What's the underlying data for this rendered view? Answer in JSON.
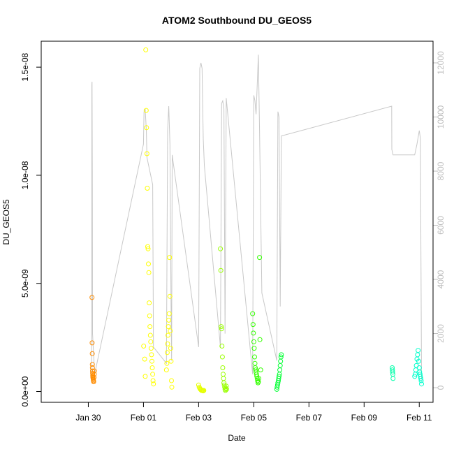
{
  "chart_data": {
    "type": "scatter",
    "title": "ATOM2 Southbound DU_GEOS5",
    "xlabel": "Date",
    "ylabel": "DU_GEOS5",
    "x_ticks": [
      "Jan 30",
      "Feb 01",
      "Feb 03",
      "Feb 05",
      "Feb 07",
      "Feb 09",
      "Feb 11"
    ],
    "xlim": [
      "2017-01-28T07:00",
      "2017-02-11T12:00"
    ],
    "ylim": [
      -5e-10,
      1.62e-08
    ],
    "y_ticks": [
      "0.0e+00",
      "5.0e-09",
      "1.0e-08",
      "1.5e-08"
    ],
    "y_tick_values": [
      0,
      5e-09,
      1e-08,
      1.5e-08
    ],
    "y2_ticks": [
      "0",
      "2000",
      "4000",
      "6000",
      "8000",
      "10000",
      "12000"
    ],
    "y2_tick_values": [
      0,
      2000,
      4000,
      6000,
      8000,
      10000,
      12000
    ],
    "y2lim": [
      -540,
      12800
    ],
    "y2_color": "#bdbdbd",
    "grid": false,
    "legend": "none",
    "series": [
      {
        "color": "#ff8c00",
        "x": [
          "2017-01-30T03:10",
          "2017-01-30T03:20",
          "2017-01-30T03:25",
          "2017-01-30T03:30",
          "2017-01-30T03:35",
          "2017-01-30T03:40",
          "2017-01-30T03:45",
          "2017-01-30T03:50",
          "2017-01-30T03:55",
          "2017-01-30T04:00",
          "2017-01-30T04:10",
          "2017-01-30T04:20",
          "2017-01-30T04:30",
          "2017-01-30T04:40",
          "2017-01-30T05:00",
          "2017-01-30T05:10",
          "2017-01-30T05:20"
        ],
        "y": [
          4.35e-09,
          2.25e-09,
          1.75e-09,
          1.25e-09,
          1.1e-09,
          9.5e-10,
          8.5e-10,
          7.5e-10,
          7e-10,
          6.5e-10,
          6e-10,
          5.5e-10,
          5e-10,
          4.5e-10,
          6.5e-10,
          8e-10,
          9.5e-10
        ]
      },
      {
        "color": "#ffff00",
        "x": [
          "2017-02-01T00:10",
          "2017-02-01T01:00",
          "2017-02-01T01:30",
          "2017-02-01T02:00",
          "2017-02-01T02:20",
          "2017-02-01T02:40",
          "2017-02-01T03:00",
          "2017-02-01T03:20",
          "2017-02-01T03:40",
          "2017-02-01T04:00",
          "2017-02-01T04:20",
          "2017-02-01T04:40",
          "2017-02-01T05:00",
          "2017-02-01T05:20",
          "2017-02-01T05:40",
          "2017-02-01T06:00",
          "2017-02-01T06:20",
          "2017-02-01T06:40",
          "2017-02-01T07:00",
          "2017-02-01T07:20",
          "2017-02-01T07:40",
          "2017-02-01T08:00",
          "2017-02-01T08:20",
          "2017-02-01T08:40"
        ],
        "y": [
          2.1e-09,
          1.5e-09,
          7e-10,
          1.58e-08,
          1.3e-08,
          1.22e-08,
          1.1e-08,
          9.4e-09,
          6.7e-09,
          6.6e-09,
          5.9e-09,
          5.5e-09,
          4.1e-09,
          3.5e-09,
          3e-09,
          2.6e-09,
          2.3e-09,
          2e-09,
          1.7e-09,
          1.4e-09,
          1.1e-09,
          8e-10,
          5e-10,
          3.5e-10
        ]
      },
      {
        "color": "#ffff00",
        "x": [
          "2017-02-01T20:00",
          "2017-02-01T20:20",
          "2017-02-01T20:40",
          "2017-02-01T21:00",
          "2017-02-01T21:20",
          "2017-02-01T21:40",
          "2017-02-01T22:00",
          "2017-02-01T22:20",
          "2017-02-01T22:40",
          "2017-02-01T23:00",
          "2017-02-01T23:20",
          "2017-02-01T23:40",
          "2017-02-02T00:00",
          "2017-02-02T00:20",
          "2017-02-02T00:40"
        ],
        "y": [
          1e-09,
          1.3e-09,
          1.8e-09,
          2.2e-09,
          2.6e-09,
          3e-09,
          3.3e-09,
          3.6e-09,
          6.2e-09,
          4.4e-09,
          2.8e-09,
          2e-09,
          1.4e-09,
          5e-10,
          2e-10
        ]
      },
      {
        "color": "#e6ff00",
        "x": [
          "2017-02-03T00:00",
          "2017-02-03T00:30",
          "2017-02-03T01:00",
          "2017-02-03T01:30",
          "2017-02-03T02:00",
          "2017-02-03T02:30",
          "2017-02-03T03:00",
          "2017-02-03T03:30",
          "2017-02-03T04:00",
          "2017-02-03T04:30"
        ],
        "y": [
          3e-10,
          2e-10,
          1.5e-10,
          1e-10,
          8e-11,
          5e-11,
          6e-11,
          4e-11,
          3e-11,
          5e-11
        ]
      },
      {
        "color": "#99ff00",
        "x": [
          "2017-02-03T19:00",
          "2017-02-03T19:20",
          "2017-02-03T19:40",
          "2017-02-03T20:00",
          "2017-02-03T20:20",
          "2017-02-03T20:40",
          "2017-02-03T21:00",
          "2017-02-03T21:20",
          "2017-02-03T21:40",
          "2017-02-03T22:00",
          "2017-02-03T22:20",
          "2017-02-03T22:40",
          "2017-02-03T23:00",
          "2017-02-03T23:20",
          "2017-02-03T23:40",
          "2017-02-04T00:00",
          "2017-02-04T00:20"
        ],
        "y": [
          6.6e-09,
          5.6e-09,
          3e-09,
          2.9e-09,
          2.1e-09,
          1.6e-09,
          1.1e-09,
          8e-10,
          6e-10,
          4e-10,
          3e-10,
          2e-10,
          1e-10,
          5e-11,
          1.5e-10,
          2.5e-10,
          1e-10
        ]
      },
      {
        "color": "#33ff00",
        "x": [
          "2017-02-04T23:00",
          "2017-02-04T23:20",
          "2017-02-04T23:40",
          "2017-02-05T00:00",
          "2017-02-05T00:20",
          "2017-02-05T00:40",
          "2017-02-05T01:00",
          "2017-02-05T01:20",
          "2017-02-05T01:40",
          "2017-02-05T02:00",
          "2017-02-05T02:20",
          "2017-02-05T02:40",
          "2017-02-05T03:00",
          "2017-02-05T03:20",
          "2017-02-05T03:40",
          "2017-02-05T04:00",
          "2017-02-05T04:20",
          "2017-02-05T05:00",
          "2017-02-05T05:20",
          "2017-02-05T06:00"
        ],
        "y": [
          3.6e-09,
          3.1e-09,
          2.7e-09,
          2.3e-09,
          2e-09,
          1.6e-09,
          1.3e-09,
          1.1e-09,
          1e-09,
          9e-10,
          8e-10,
          7e-10,
          6e-10,
          5e-10,
          4e-10,
          4.5e-10,
          6e-10,
          6.2e-09,
          2.4e-09,
          1e-09
        ]
      },
      {
        "color": "#00ff33",
        "x": [
          "2017-02-05T20:00",
          "2017-02-05T20:20",
          "2017-02-05T20:40",
          "2017-02-05T21:00",
          "2017-02-05T21:20",
          "2017-02-05T21:40",
          "2017-02-05T22:00",
          "2017-02-05T22:20",
          "2017-02-05T22:40",
          "2017-02-05T23:00",
          "2017-02-05T23:20",
          "2017-02-05T23:40",
          "2017-02-06T00:00"
        ],
        "y": [
          1e-10,
          2e-10,
          3e-10,
          4e-10,
          5e-10,
          6e-10,
          7e-10,
          8e-10,
          1e-09,
          1.2e-09,
          1.4e-09,
          1.6e-09,
          1.7e-09
        ]
      },
      {
        "color": "#00ffaa",
        "x": [
          "2017-02-10T00:30",
          "2017-02-10T00:40",
          "2017-02-10T00:50",
          "2017-02-10T01:00",
          "2017-02-10T01:10"
        ],
        "y": [
          1.1e-09,
          1e-09,
          9e-10,
          8e-10,
          6e-10
        ]
      },
      {
        "color": "#00ffcc",
        "x": [
          "2017-02-10T20:00",
          "2017-02-10T20:30",
          "2017-02-10T21:00",
          "2017-02-10T21:30",
          "2017-02-10T22:00",
          "2017-02-10T22:30",
          "2017-02-10T23:00",
          "2017-02-10T23:30",
          "2017-02-11T00:00",
          "2017-02-11T00:20",
          "2017-02-11T00:40",
          "2017-02-11T01:00",
          "2017-02-11T01:20",
          "2017-02-11T01:40",
          "2017-02-11T02:00"
        ],
        "y": [
          7e-10,
          8e-10,
          1e-09,
          1.2e-09,
          1.5e-09,
          1.7e-09,
          1.9e-09,
          1.4e-09,
          1.1e-09,
          9e-10,
          8e-10,
          7e-10,
          6e-10,
          5e-10,
          3.5e-10
        ]
      }
    ],
    "line_series": {
      "color": "#c8c8c8",
      "axis": "right",
      "x": [
        "2017-01-30T02:55",
        "2017-01-30T03:00",
        "2017-01-30T03:05",
        "2017-01-30T03:15",
        "2017-01-30T03:30",
        "2017-01-30T03:40",
        "2017-01-30T05:30",
        "2017-02-01T00:00",
        "2017-02-01T00:30",
        "2017-02-01T01:30",
        "2017-02-01T02:30",
        "2017-02-01T03:00",
        "2017-02-01T08:00",
        "2017-02-01T08:40",
        "2017-02-01T20:00",
        "2017-02-01T21:00",
        "2017-02-01T22:00",
        "2017-02-01T23:00",
        "2017-02-02T00:00",
        "2017-02-02T00:30",
        "2017-02-02T01:00",
        "2017-02-03T00:00",
        "2017-02-03T01:00",
        "2017-02-03T02:00",
        "2017-02-03T03:00",
        "2017-02-03T04:00",
        "2017-02-03T05:00",
        "2017-02-03T19:00",
        "2017-02-03T20:00",
        "2017-02-03T21:00",
        "2017-02-03T22:00",
        "2017-02-03T23:00",
        "2017-02-04T00:00",
        "2017-02-04T23:00",
        "2017-02-05T00:00",
        "2017-02-05T01:00",
        "2017-02-05T02:00",
        "2017-02-05T03:00",
        "2017-02-05T04:00",
        "2017-02-05T05:00",
        "2017-02-05T07:00",
        "2017-02-05T20:00",
        "2017-02-05T21:00",
        "2017-02-05T22:00",
        "2017-02-05T23:00",
        "2017-02-06T00:00",
        "2017-02-10T00:00",
        "2017-02-10T00:10",
        "2017-02-10T01:10",
        "2017-02-10T20:00",
        "2017-02-10T22:00",
        "2017-02-11T00:00",
        "2017-02-11T01:00",
        "2017-02-11T02:00"
      ],
      "y": [
        200,
        4000,
        11200,
        11300,
        8000,
        2000,
        500,
        9000,
        10200,
        10300,
        9500,
        8500,
        7500,
        1500,
        900,
        9500,
        10400,
        9000,
        3000,
        1000,
        8600,
        1500,
        11800,
        12000,
        11800,
        9200,
        8200,
        1500,
        10500,
        10600,
        10300,
        2000,
        10700,
        500,
        10800,
        10600,
        10100,
        11200,
        12300,
        9500,
        3500,
        1000,
        10200,
        10000,
        3000,
        9300,
        10400,
        8800,
        8600,
        8600,
        9000,
        9500,
        9200,
        300
      ]
    }
  }
}
